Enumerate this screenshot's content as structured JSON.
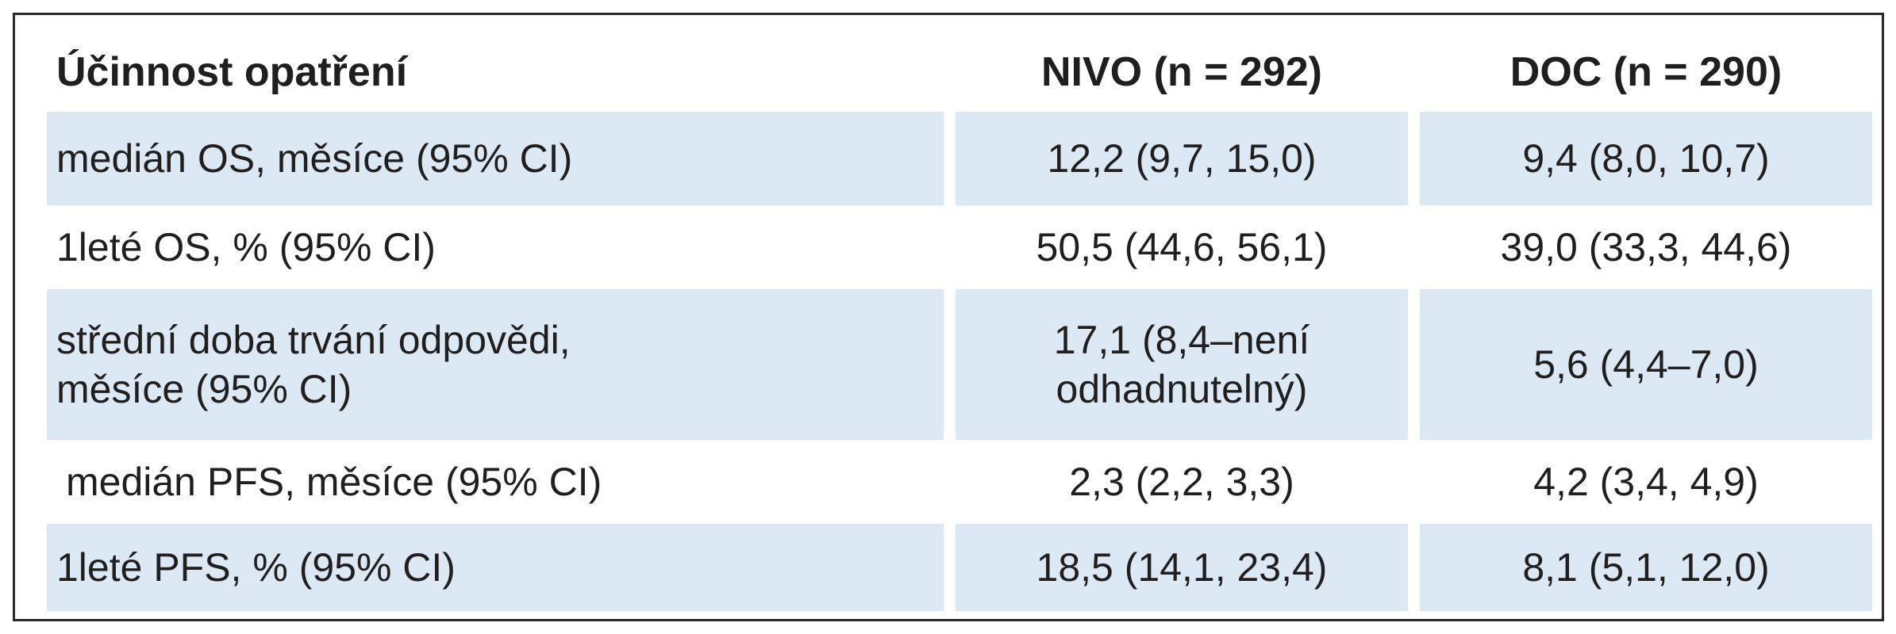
{
  "table": {
    "headers": [
      "Účinnost opatření",
      "NIVO (n = 292)",
      "DOC (n = 290)"
    ],
    "rows": [
      {
        "label": "medián OS, měsíce (95% CI)",
        "nivo": "12,2 (9,7, 15,0)",
        "doc": "9,4 (8,0, 10,7)"
      },
      {
        "label": "1leté OS, % (95% CI)",
        "nivo": "50,5 (44,6, 56,1)",
        "doc": "39,0 (33,3, 44,6)"
      },
      {
        "label": "střední doba trvání odpovědi, měsíce (95% CI)",
        "nivo": "17,1 (8,4–není odhadnutelný)",
        "doc": "5,6 (4,4–7,0)"
      },
      {
        "label": "medián PFS, měsíce (95% CI)",
        "nivo": "2,3 (2,2, 3,3)",
        "doc": "4,2 (3,4, 4,9)"
      },
      {
        "label": "1leté PFS, % (95% CI)",
        "nivo": "18,5 (14,1, 23,4)",
        "doc": "8,1 (5,1, 12,0)"
      }
    ],
    "shaded_row_color": "#dde8f5",
    "border_color": "#2b2b2b"
  }
}
